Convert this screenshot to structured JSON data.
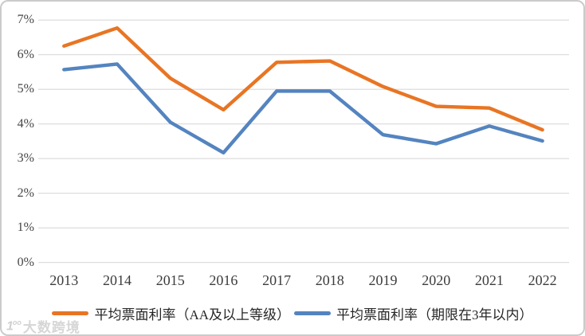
{
  "chart_data": {
    "type": "line",
    "title": "",
    "xlabel": "",
    "ylabel": "",
    "categories": [
      "2013",
      "2014",
      "2015",
      "2016",
      "2017",
      "2018",
      "2019",
      "2020",
      "2021",
      "2022"
    ],
    "series": [
      {
        "name": "平均票面利率（AA及以上等级）",
        "color": "#E87524",
        "values": [
          6.25,
          6.77,
          5.32,
          4.41,
          5.78,
          5.82,
          5.08,
          4.51,
          4.46,
          3.83
        ]
      },
      {
        "name": "平均票面利率（期限在3年以内）",
        "color": "#5484C0",
        "values": [
          5.57,
          5.73,
          4.05,
          3.17,
          4.95,
          4.95,
          3.69,
          3.43,
          3.94,
          3.51
        ]
      }
    ],
    "y_ticks": [
      0,
      1,
      2,
      3,
      4,
      5,
      6,
      7
    ],
    "y_tick_labels": [
      "0%",
      "1%",
      "2%",
      "3%",
      "4%",
      "5%",
      "6%",
      "7%"
    ],
    "ylim": [
      0,
      7
    ],
    "grid": "horizontal",
    "grid_color": "#D9D9D9",
    "legend_position": "bottom"
  },
  "watermark": {
    "logo_main": "1",
    "logo_sup": "oo",
    "text": "大数跨境"
  },
  "colors": {
    "border": "#CBCBCB",
    "axis_text": "#454545",
    "legend_text": "#262626"
  }
}
